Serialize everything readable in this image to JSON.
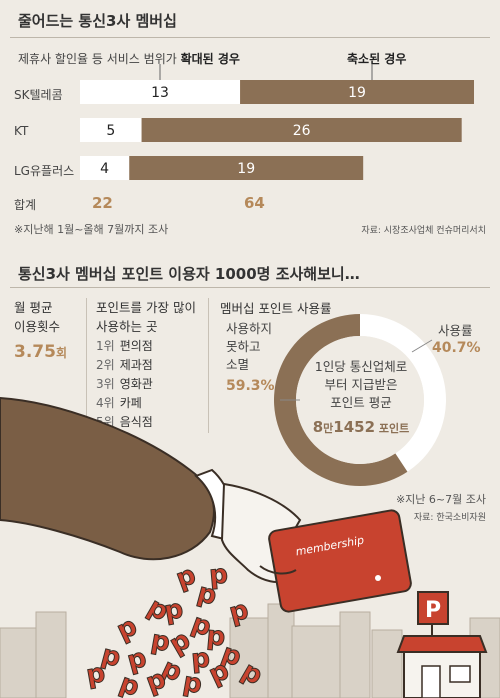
{
  "section1": {
    "title": "줄어드는 통신3사 멤버십",
    "legend_expanded_prefix": "제휴사 할인율 등 서비스 범위가 ",
    "legend_expanded_bold": "확대된 경우",
    "legend_reduced": "축소된 경우",
    "totals_label": "합계",
    "note": "※지난해 1월~올해 7월까지 조사",
    "source": "자료: 시장조사업체 컨슈머리서치",
    "colors": {
      "expanded": "#ffffff",
      "reduced": "#8b7055",
      "total": "#b5895a"
    }
  },
  "chart_data": {
    "type": "bar",
    "orientation": "horizontal",
    "stacked": true,
    "categories": [
      "SK텔레콤",
      "KT",
      "LG유플러스"
    ],
    "series": [
      {
        "name": "확대된 경우",
        "values": [
          13,
          5,
          4
        ]
      },
      {
        "name": "축소된 경우",
        "values": [
          19,
          26,
          19
        ]
      }
    ],
    "totals": [
      22,
      64
    ]
  },
  "section2": {
    "title": "통신3사 멤버십 포인트 이용자 1000명 조사해보니…",
    "col1": {
      "title_line1": "월 평균",
      "title_line2": "이용횟수",
      "value": "3.75",
      "unit": "회"
    },
    "col2": {
      "title_line1": "포인트를 가장 많이",
      "title_line2": "사용하는 곳",
      "items": [
        {
          "rank": "1위",
          "name": "편의점"
        },
        {
          "rank": "2위",
          "name": "제과점"
        },
        {
          "rank": "3위",
          "name": "영화관"
        },
        {
          "rank": "4위",
          "name": "카페"
        },
        {
          "rank": "5위",
          "name": "음식점"
        }
      ]
    },
    "col3": {
      "title": "멤버십 포인트 사용률",
      "unused_line1": "사용하지",
      "unused_line2": "못하고",
      "unused_line3": "소멸",
      "unused_value": "59.3%",
      "used_label": "사용률",
      "used_value": "40.7%",
      "center_line1": "1인당 통신업체로",
      "center_line2": "부터 지급받은",
      "center_line3": "포인트 평균",
      "center_value_a": "8",
      "center_value_b": "만",
      "center_value_c": "1452",
      "center_value_d": " 포인트"
    },
    "donut": {
      "used": 40.7,
      "unused": 59.3,
      "used_color": "#ffffff",
      "unused_color": "#8b7055"
    },
    "note": "※지난 6~7월 조사",
    "source": "자료: 한국소비자원"
  },
  "illustration": {
    "card_text": "membership",
    "shop_sign": "P",
    "point_letter": "p"
  }
}
